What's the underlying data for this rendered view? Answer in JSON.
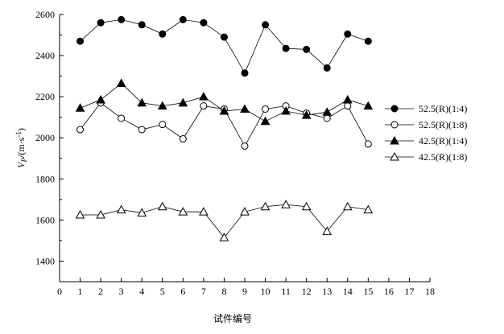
{
  "chart_data": {
    "type": "line",
    "xlabel": "试件编号",
    "ylabel_main": "V",
    "ylabel_sub": "P",
    "ylabel_unit": "/(m·s",
    "ylabel_exp": "-1",
    "ylabel_close": ")",
    "xlim": [
      0,
      18
    ],
    "ylim": [
      1300,
      2600
    ],
    "x_ticks": [
      0,
      1,
      2,
      3,
      4,
      5,
      6,
      7,
      8,
      9,
      10,
      11,
      12,
      13,
      14,
      15,
      16,
      17,
      18
    ],
    "y_ticks": [
      1400,
      1600,
      1800,
      2000,
      2200,
      2400,
      2600
    ],
    "legend_position": "right",
    "grid": false,
    "x": [
      1,
      2,
      3,
      4,
      5,
      6,
      7,
      8,
      9,
      10,
      11,
      12,
      13,
      14,
      15
    ],
    "series": [
      {
        "name": "52.5(R)(1:4)",
        "marker": "circle",
        "filled": true,
        "values": [
          2470,
          2560,
          2575,
          2550,
          2505,
          2575,
          2560,
          2490,
          2315,
          2550,
          2435,
          2430,
          2340,
          2505,
          2470
        ]
      },
      {
        "name": "52.5(R)(1:8)",
        "marker": "circle",
        "filled": false,
        "values": [
          2040,
          2170,
          2095,
          2040,
          2065,
          1995,
          2155,
          2140,
          1960,
          2140,
          2155,
          2120,
          2095,
          2155,
          1970
        ]
      },
      {
        "name": "42.5(R)(1:4)",
        "marker": "triangle",
        "filled": true,
        "values": [
          2145,
          2185,
          2265,
          2170,
          2155,
          2170,
          2200,
          2130,
          2140,
          2080,
          2130,
          2110,
          2125,
          2185,
          2155
        ]
      },
      {
        "name": "42.5(R)(1:8)",
        "marker": "triangle",
        "filled": false,
        "values": [
          1625,
          1625,
          1650,
          1635,
          1665,
          1640,
          1640,
          1515,
          1640,
          1665,
          1675,
          1665,
          1545,
          1665,
          1650
        ]
      }
    ]
  }
}
